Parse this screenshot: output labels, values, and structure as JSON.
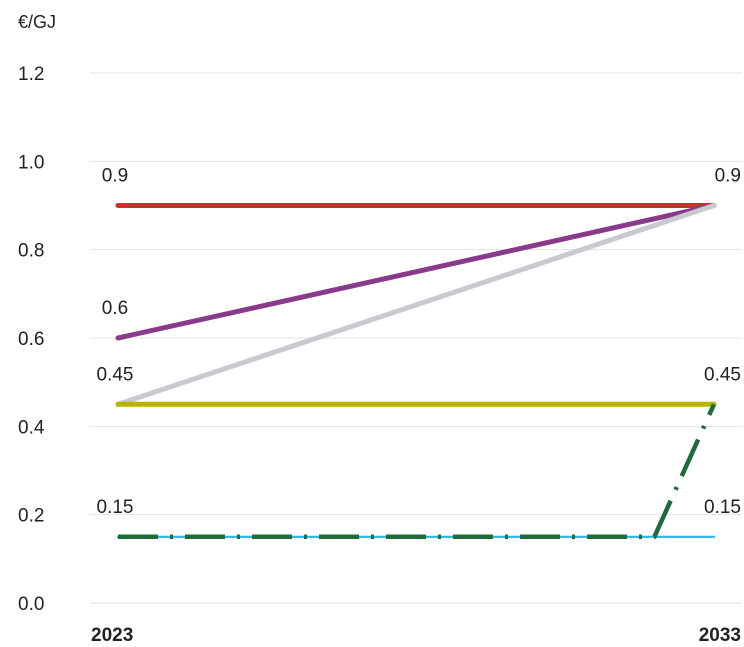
{
  "chart_data": {
    "type": "line",
    "y_unit_label": "€/GJ",
    "x": [
      "2023",
      "2033"
    ],
    "ylim": [
      0,
      1.2
    ],
    "yticks": [
      "0.0",
      "0.2",
      "0.4",
      "0.6",
      "0.8",
      "1.0",
      "1.2"
    ],
    "grid": true,
    "legend": "none",
    "series": [
      {
        "values": [
          0.9,
          0.9
        ],
        "color": "#d62b2b",
        "style": "solid"
      },
      {
        "values": [
          0.6,
          0.9
        ],
        "color": "#8a3a8a",
        "style": "solid"
      },
      {
        "values": [
          0.45,
          0.9
        ],
        "color": "#c9c9cf",
        "style": "solid"
      },
      {
        "values": [
          0.45,
          0.45
        ],
        "color": "#b5b500",
        "style": "solid"
      },
      {
        "values": [
          0.15,
          0.15
        ],
        "color": "#29b6e6",
        "style": "solid-thin"
      },
      {
        "x": [
          "2023",
          "2032",
          "2033"
        ],
        "values": [
          0.15,
          0.15,
          0.45
        ],
        "color": "#1f6b3c",
        "style": "dashdot"
      }
    ],
    "data_labels": [
      {
        "text": "0.9",
        "x": "2023",
        "value": 0.9
      },
      {
        "text": "0.9",
        "x": "2033",
        "value": 0.9
      },
      {
        "text": "0.6",
        "x": "2023",
        "value": 0.6
      },
      {
        "text": "0.45",
        "x": "2023",
        "value": 0.45
      },
      {
        "text": "0.45",
        "x": "2033",
        "value": 0.45
      },
      {
        "text": "0.15",
        "x": "2023",
        "value": 0.15
      },
      {
        "text": "0.15",
        "x": "2033",
        "value": 0.15
      }
    ]
  }
}
